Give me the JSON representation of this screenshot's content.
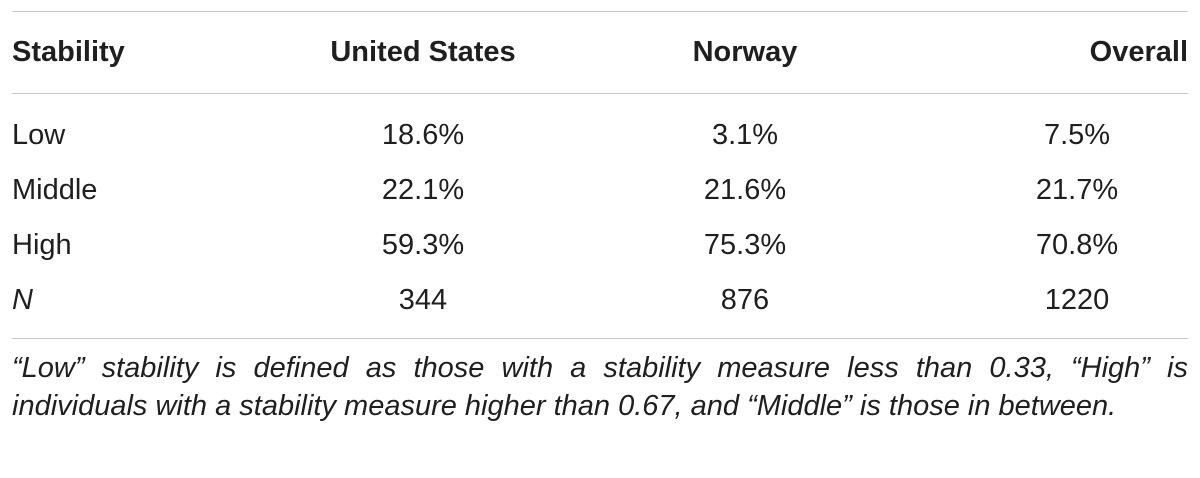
{
  "table": {
    "headers": [
      "Stability",
      "United States",
      "Norway",
      "Overall"
    ],
    "rows": [
      {
        "label": "Low",
        "values": [
          "18.6%",
          "3.1%",
          "7.5%"
        ]
      },
      {
        "label": "Middle",
        "values": [
          "22.1%",
          "21.6%",
          "21.7%"
        ]
      },
      {
        "label": "High",
        "values": [
          "59.3%",
          "75.3%",
          "70.8%"
        ]
      },
      {
        "label": "N",
        "values": [
          "344",
          "876",
          "1220"
        ]
      }
    ],
    "note": "“Low” stability is defined as those with a stability measure less than 0.33, “High” is individuals with a stability measure higher than 0.67, and “Middle” is those in between."
  }
}
